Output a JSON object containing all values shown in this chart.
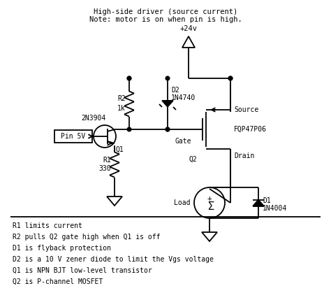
{
  "title_line1": "High-side driver (source current)",
  "title_line2": "Note: motor is on when pin is high.",
  "bg_color": "#ffffff",
  "line_color": "#000000",
  "text_color": "#000000",
  "font_family": "monospace",
  "labels": {
    "vcc": "+24v",
    "pin": "Pin 5V",
    "q1_label": "2N3904",
    "q1": "Q1",
    "q2": "Q2",
    "r1_label": "R1",
    "r1_val": "330",
    "r2_label": "R2",
    "r2_val": "1k",
    "d1_label": "D1",
    "d1_val": "1N4004",
    "d2_label": "D2",
    "d2_val": "1N4740",
    "gate": "Gate",
    "source": "Source",
    "drain": "Drain",
    "load": "Load",
    "mosfet": "FQP47P06"
  },
  "notes": [
    "R1 limits current",
    "R2 pulls Q2 gate high when Q1 is off",
    "D1 is flyback protection",
    "D2 is a 10 V zener diode to limit the Vgs voltage",
    "Q1 is NPN BJT low-level transistor",
    "Q2 is P-channel MOSFET"
  ]
}
